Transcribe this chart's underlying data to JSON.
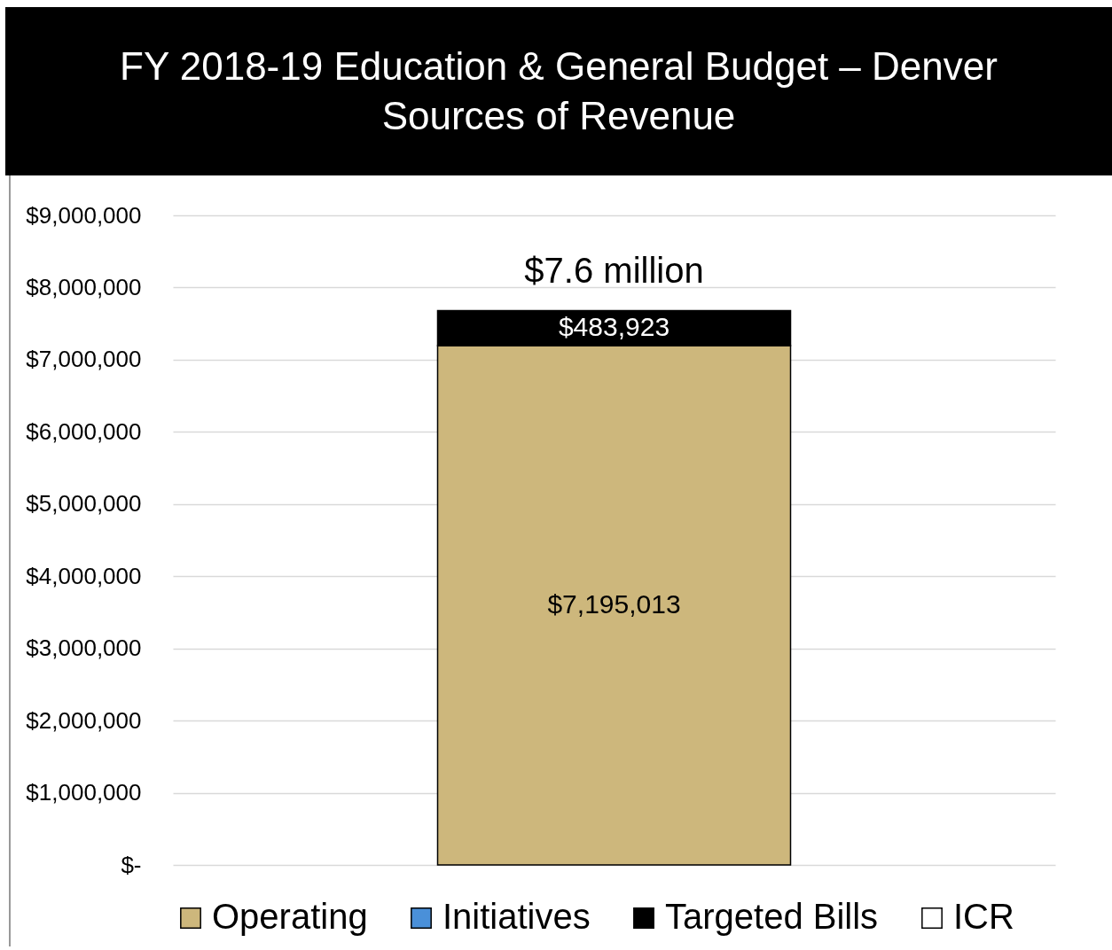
{
  "chart_data": {
    "type": "bar",
    "title": "FY 2018-19 Education & General Budget – Denver Sources of Revenue",
    "categories": [
      null
    ],
    "series": [
      {
        "name": "Operating",
        "color": "#cdb77c",
        "values": [
          7195013
        ],
        "value_labels": [
          "$7,195,013"
        ]
      },
      {
        "name": "Initiatives",
        "color": "#4a90d9",
        "values": [
          null
        ]
      },
      {
        "name": "Targeted Bills",
        "color": "#000000",
        "values": [
          483923
        ],
        "value_labels": [
          "$483,923"
        ]
      },
      {
        "name": "ICR",
        "color": "#ffffff",
        "values": [
          null
        ]
      }
    ],
    "stacked": true,
    "totals": [
      "$7.6 million"
    ],
    "ylim": [
      0,
      9000000
    ],
    "yticks": [
      {
        "value": 0,
        "label": "$-"
      },
      {
        "value": 1000000,
        "label": "$1,000,000"
      },
      {
        "value": 2000000,
        "label": "$2,000,000"
      },
      {
        "value": 3000000,
        "label": "$3,000,000"
      },
      {
        "value": 4000000,
        "label": "$4,000,000"
      },
      {
        "value": 5000000,
        "label": "$5,000,000"
      },
      {
        "value": 6000000,
        "label": "$6,000,000"
      },
      {
        "value": 7000000,
        "label": "$7,000,000"
      },
      {
        "value": 8000000,
        "label": "$8,000,000"
      },
      {
        "value": 9000000,
        "label": "$9,000,000"
      }
    ],
    "grid": "y",
    "legend": "bottom",
    "tick_labels": "y"
  }
}
